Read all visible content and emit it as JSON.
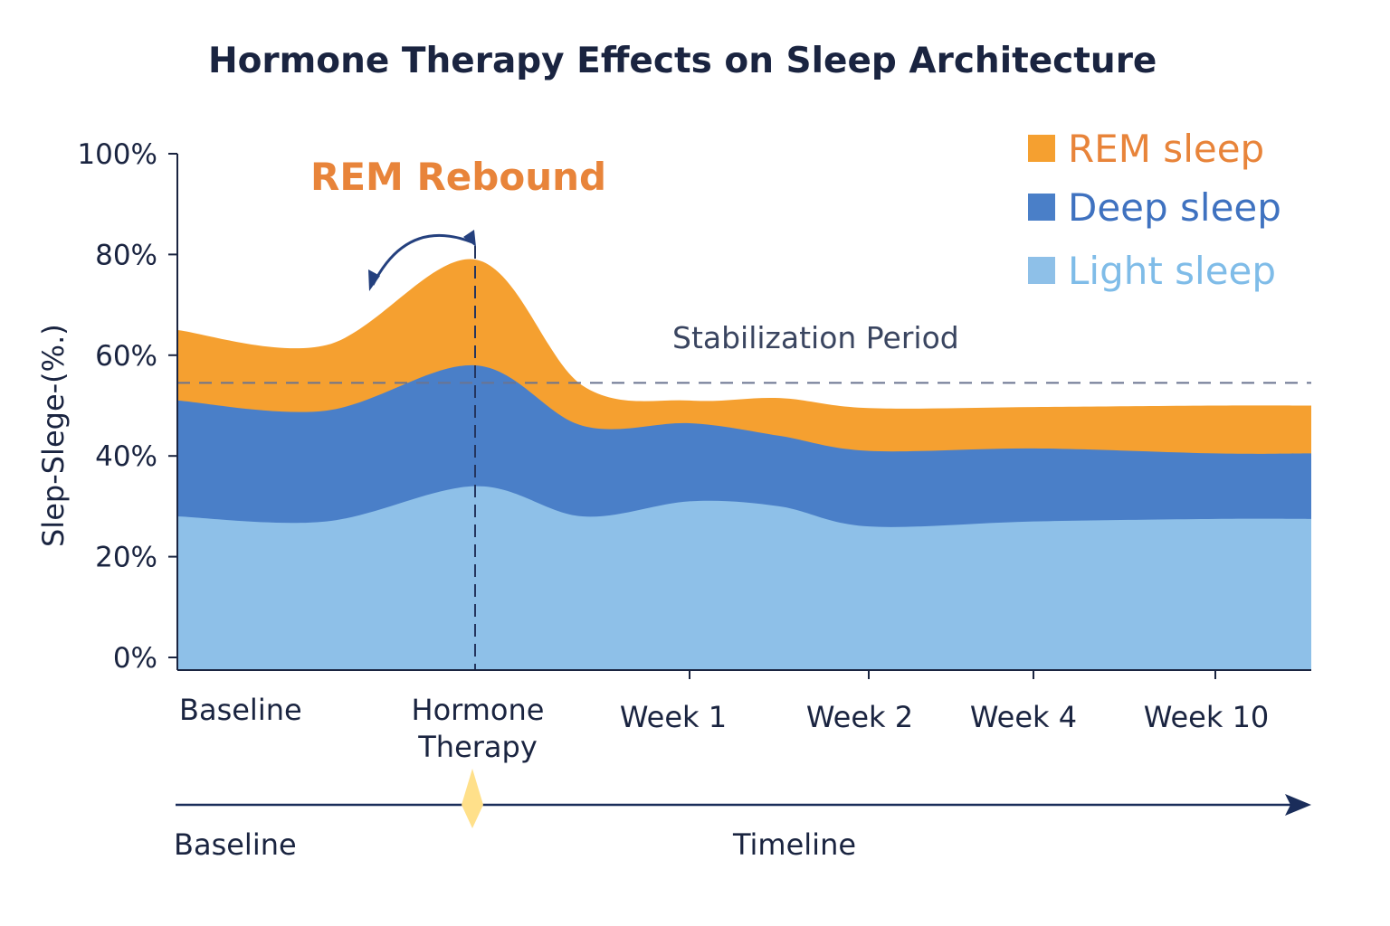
{
  "chart_data": {
    "type": "area",
    "stacked": true,
    "title": "Hormone Therapy Effects on Sleep Architecture",
    "ylabel": "Slep-Slege-(%.)",
    "xlabel": "Timeline",
    "ylim": [
      0,
      100
    ],
    "yticks": [
      "0%",
      "20%",
      "40%",
      "60%",
      "80%",
      "100%"
    ],
    "categories": [
      "Baseline",
      "Hormone Therapy",
      "Week 1",
      "Week 2",
      "Week 4",
      "Week 10"
    ],
    "x": [
      0,
      0.5,
      1,
      1.5,
      2,
      2.5,
      3,
      4,
      5,
      5.5
    ],
    "series": [
      {
        "name": "Light sleep",
        "color": "#8EC0E8",
        "values": [
          28,
          27,
          34,
          28,
          31,
          30,
          26,
          27,
          27.5,
          27.5
        ]
      },
      {
        "name": "Deep sleep",
        "color": "#4A7FC8",
        "values": [
          23,
          22,
          24,
          18,
          15.5,
          14,
          15,
          14.5,
          13,
          13
        ]
      },
      {
        "name": "REM sleep",
        "color": "#F5A030",
        "values": [
          14,
          13,
          21,
          8,
          4.5,
          7.5,
          8.5,
          8.2,
          9.5,
          9.5
        ]
      }
    ],
    "legend": {
      "placement": "top-right",
      "order": [
        "REM sleep",
        "Deep sleep",
        "Light sleep"
      ],
      "text_colors": {
        "REM sleep": "#E8843A",
        "Deep sleep": "#3F72C0",
        "Light sleep": "#7FBCE8"
      }
    },
    "reference_line": {
      "y": 54.5,
      "label": "Stabilization Period"
    },
    "event_marker": {
      "x": "Hormone Therapy"
    },
    "annotation": {
      "text": "REM Rebound",
      "color": "#E8843A"
    },
    "timeline": {
      "start_label": "Baseline",
      "label": "Timeline",
      "marker_color": "#FFE08A"
    },
    "grid": false
  }
}
